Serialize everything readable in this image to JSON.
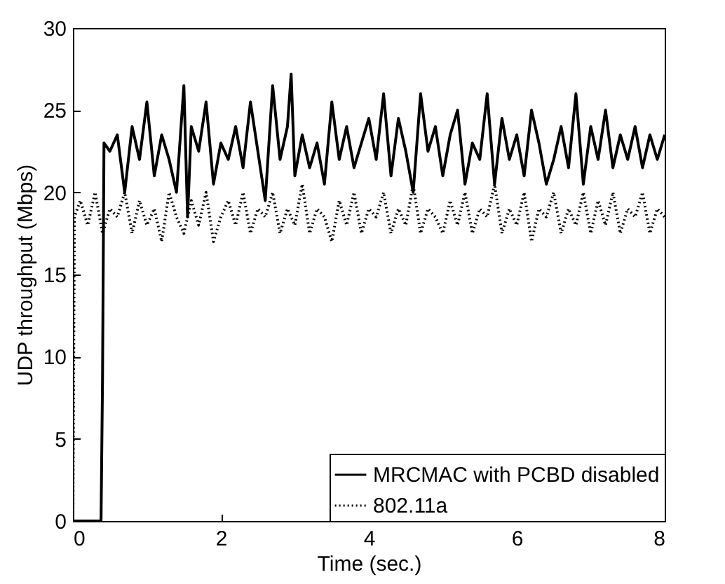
{
  "chart_data": {
    "type": "line",
    "xlabel": "Time (sec.)",
    "ylabel": "UDP throughput (Mbps)",
    "xlim": [
      0,
      8
    ],
    "ylim": [
      0,
      30
    ],
    "xticks": [
      0,
      2,
      4,
      6,
      8
    ],
    "yticks": [
      0,
      5,
      10,
      15,
      20,
      25,
      30
    ],
    "grid": false,
    "legend": "bottom right",
    "marker": "none",
    "series": [
      {
        "name": "MRCMAC with PCBD disabled",
        "color": "#000000",
        "line_style": "solid",
        "x": [
          0,
          0.38,
          0.4,
          0.42,
          0.5,
          0.6,
          0.7,
          0.8,
          0.9,
          1.0,
          1.1,
          1.2,
          1.3,
          1.4,
          1.5,
          1.55,
          1.6,
          1.7,
          1.8,
          1.9,
          2.0,
          2.1,
          2.2,
          2.3,
          2.4,
          2.5,
          2.6,
          2.7,
          2.8,
          2.9,
          2.95,
          3.0,
          3.1,
          3.2,
          3.3,
          3.4,
          3.5,
          3.6,
          3.7,
          3.8,
          3.9,
          4.0,
          4.1,
          4.2,
          4.3,
          4.4,
          4.5,
          4.6,
          4.7,
          4.8,
          4.9,
          5.0,
          5.1,
          5.2,
          5.3,
          5.4,
          5.5,
          5.6,
          5.7,
          5.8,
          5.9,
          6.0,
          6.1,
          6.2,
          6.3,
          6.4,
          6.5,
          6.6,
          6.7,
          6.8,
          6.9,
          7.0,
          7.1,
          7.2,
          7.3,
          7.4,
          7.5,
          7.6,
          7.7,
          7.8,
          7.9,
          8.0
        ],
        "values": [
          0,
          0,
          8.5,
          23,
          22.5,
          23.5,
          20,
          24,
          22,
          25.5,
          21,
          23.5,
          22,
          20,
          26.5,
          18.5,
          24,
          22.5,
          25.5,
          20.5,
          23,
          22,
          24,
          21.5,
          25.5,
          22.5,
          19.5,
          26.5,
          22,
          24,
          27.2,
          21,
          23.5,
          21.5,
          23,
          20.5,
          25.5,
          22,
          24,
          21.5,
          23,
          24.5,
          22,
          26,
          21,
          24.5,
          22.5,
          20,
          26,
          22.5,
          24,
          21,
          23.5,
          25,
          20.5,
          23,
          22,
          26,
          20.5,
          24.5,
          22,
          23.5,
          21,
          25,
          23,
          20.5,
          22,
          24,
          21.5,
          26,
          20.5,
          24,
          22,
          25,
          21.5,
          23.5,
          22,
          24,
          21.5,
          23.5,
          22,
          23.5
        ]
      },
      {
        "name": "802.11a",
        "color": "#000000",
        "line_style": "dotted",
        "x": [
          0,
          0.02,
          0.1,
          0.2,
          0.3,
          0.4,
          0.5,
          0.6,
          0.7,
          0.8,
          0.9,
          1.0,
          1.1,
          1.2,
          1.3,
          1.4,
          1.5,
          1.6,
          1.7,
          1.8,
          1.9,
          2.0,
          2.1,
          2.2,
          2.3,
          2.4,
          2.5,
          2.6,
          2.7,
          2.8,
          2.9,
          3.0,
          3.1,
          3.2,
          3.3,
          3.4,
          3.5,
          3.6,
          3.7,
          3.8,
          3.9,
          4.0,
          4.1,
          4.2,
          4.3,
          4.4,
          4.5,
          4.6,
          4.7,
          4.8,
          4.9,
          5.0,
          5.1,
          5.2,
          5.3,
          5.4,
          5.5,
          5.6,
          5.7,
          5.8,
          5.9,
          6.0,
          6.1,
          6.2,
          6.3,
          6.4,
          6.5,
          6.6,
          6.7,
          6.8,
          6.9,
          7.0,
          7.1,
          7.2,
          7.3,
          7.4,
          7.5,
          7.6,
          7.7,
          7.8,
          7.9,
          8.0
        ],
        "values": [
          0,
          18.5,
          19.5,
          18,
          20,
          17.5,
          19,
          18.5,
          20,
          17.5,
          19.5,
          18,
          19,
          17,
          20,
          18.5,
          17.5,
          19.5,
          18,
          20,
          17,
          18.5,
          19.5,
          18,
          20,
          17.5,
          19,
          18.5,
          20,
          17.5,
          19,
          18,
          20.5,
          17.5,
          19,
          18.5,
          17,
          19.5,
          18,
          20,
          17.5,
          19,
          18.5,
          20,
          17.5,
          19,
          18,
          20.5,
          17.5,
          19,
          18.5,
          17.5,
          19.5,
          18,
          20,
          17.5,
          19,
          18.5,
          20.5,
          17.5,
          19,
          18,
          20,
          17,
          19,
          18.5,
          20,
          17.5,
          19,
          18,
          20,
          17.5,
          19.5,
          18,
          20,
          17.5,
          19,
          18.5,
          20,
          17.5,
          19,
          18.5
        ]
      }
    ]
  }
}
